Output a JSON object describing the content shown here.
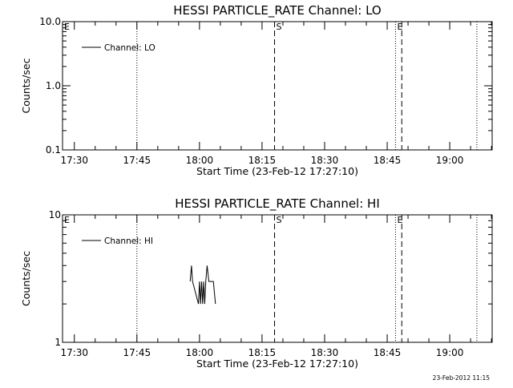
{
  "chart_data": [
    {
      "type": "line",
      "title": "HESSI PARTICLE_RATE Channel: LO",
      "xlabel": "Start Time (23-Feb-12 17:27:10)",
      "ylabel": "Counts/sec",
      "yscale": "log",
      "ylim": [
        0.1,
        10.0
      ],
      "yticks": [
        0.1,
        1.0,
        10.0
      ],
      "ytick_labels": [
        "0.1",
        "1.0",
        "10.0"
      ],
      "xlim": [
        "17:27:10",
        "19:10:10"
      ],
      "xticks": [
        "17:30",
        "17:45",
        "18:00",
        "18:15",
        "18:30",
        "18:45",
        "19:00"
      ],
      "legend": {
        "position": "top-left",
        "entries": [
          "Channel: LO"
        ]
      },
      "series": [
        {
          "name": "Channel: LO",
          "points": []
        }
      ],
      "event_markers": [
        {
          "label": "E",
          "time": "17:27:10",
          "style": "dotted"
        },
        {
          "label": "",
          "time": "17:45:00",
          "style": "dotted"
        },
        {
          "label": "S",
          "time": "18:18:00",
          "style": "dashed"
        },
        {
          "label": "E",
          "time": "18:47:00",
          "style": "dotted"
        },
        {
          "label": "",
          "time": "18:48:30",
          "style": "dashed"
        },
        {
          "label": "",
          "time": "19:06:30",
          "style": "dotted"
        }
      ]
    },
    {
      "type": "line",
      "title": "HESSI PARTICLE_RATE Channel: HI",
      "xlabel": "Start Time (23-Feb-12 17:27:10)",
      "ylabel": "Counts/sec",
      "yscale": "log",
      "ylim": [
        1,
        10
      ],
      "yticks": [
        1,
        10
      ],
      "ytick_labels": [
        "1",
        "10"
      ],
      "xlim": [
        "17:27:10",
        "19:10:10"
      ],
      "xticks": [
        "17:30",
        "17:45",
        "18:00",
        "18:15",
        "18:30",
        "18:45",
        "19:00"
      ],
      "legend": {
        "position": "top-left",
        "entries": [
          "Channel: HI"
        ]
      },
      "series": [
        {
          "name": "Channel: HI",
          "points": [
            [
              "17:57:45",
              3
            ],
            [
              "17:58:05",
              4
            ],
            [
              "17:58:20",
              3
            ],
            [
              "17:59:45",
              2
            ],
            [
              "18:00:00",
              3
            ],
            [
              "18:00:15",
              2
            ],
            [
              "18:00:30",
              3
            ],
            [
              "18:00:45",
              2
            ],
            [
              "18:01:00",
              3
            ],
            [
              "18:01:15",
              2
            ],
            [
              "18:01:30",
              3
            ],
            [
              "18:01:50",
              4
            ],
            [
              "18:02:15",
              3
            ],
            [
              "18:03:20",
              3
            ],
            [
              "18:03:50",
              2
            ]
          ]
        }
      ],
      "event_markers": [
        {
          "label": "E",
          "time": "17:27:10",
          "style": "dotted"
        },
        {
          "label": "",
          "time": "17:45:00",
          "style": "dotted"
        },
        {
          "label": "S",
          "time": "18:18:00",
          "style": "dashed"
        },
        {
          "label": "E",
          "time": "18:47:00",
          "style": "dotted"
        },
        {
          "label": "",
          "time": "18:48:30",
          "style": "dashed"
        },
        {
          "label": "",
          "time": "19:06:30",
          "style": "dotted"
        }
      ]
    }
  ],
  "footer": {
    "timestamp": "23-Feb-2012 11:15"
  }
}
